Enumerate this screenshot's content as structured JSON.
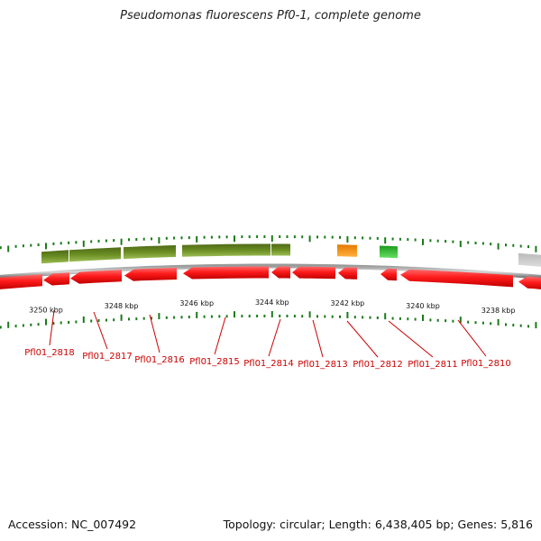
{
  "header": {
    "title": "Pseudomonas fluorescens Pf0-1, complete genome"
  },
  "footer": {
    "accession": "Accession: NC_007492",
    "summary": "Topology: circular; Length: 6,438,405 bp; Genes: 5,816"
  },
  "scale": {
    "labels": [
      "3250 kbp",
      "3248 kbp",
      "3246 kbp",
      "3244 kbp",
      "3242 kbp",
      "3240 kbp",
      "3238 kbp"
    ],
    "tick_color": "#1a7a1a"
  },
  "backbone_color": "#808080",
  "genes": [
    {
      "label": "Pfl01_2818",
      "color": "#6b8e23"
    },
    {
      "label": "Pfl01_2817",
      "color": "#6b8e23"
    },
    {
      "label": "Pfl01_2816",
      "color": "#6b8e23"
    },
    {
      "label": "Pfl01_2815",
      "color": "#6b8e23"
    },
    {
      "label": "Pfl01_2814",
      "color": "#6b8e23"
    },
    {
      "label": "Pfl01_2813",
      "color": "#e60000"
    },
    {
      "label": "Pfl01_2812",
      "color": "#ff8c00"
    },
    {
      "label": "Pfl01_2811",
      "color": "#22bb22"
    },
    {
      "label": "Pfl01_2810",
      "color": "#e60000"
    }
  ],
  "label_color": "#cc0000"
}
